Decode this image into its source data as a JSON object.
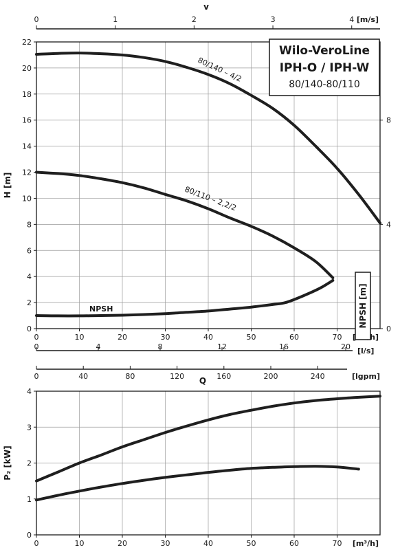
{
  "chart_data": [
    {
      "type": "line",
      "title": "Wilo-VeroLine",
      "subtitle": "IPH-O / IPH-W",
      "model_range": "80/140-80/110",
      "xlabel": "Q",
      "ylabel": "H [m]",
      "xlim": [
        0,
        80
      ],
      "ylim": [
        0,
        22
      ],
      "x_unit": "[m³/h]",
      "yticks": [
        0,
        2,
        4,
        6,
        8,
        10,
        12,
        14,
        16,
        18,
        20,
        22
      ],
      "xticks": [
        0,
        10,
        20,
        30,
        40,
        50,
        60,
        70
      ],
      "grid": true,
      "top_axis": {
        "label": "v",
        "unit": "[m/s]",
        "ticks": [
          0,
          1,
          2,
          3,
          4
        ],
        "q_per_unit": 18.35
      },
      "secondary_x_axes": [
        {
          "unit": "[l/s]",
          "ticks": [
            0,
            4,
            8,
            12,
            16,
            20
          ],
          "q_per_unit": 3.6
        },
        {
          "unit": "[lgpm]",
          "ticks": [
            0,
            40,
            80,
            120,
            160,
            200,
            240
          ],
          "q_per_unit": 0.2728
        }
      ],
      "right_axis": {
        "label": "NPSH [m]",
        "ticks": [
          0,
          4,
          8
        ],
        "range": [
          0,
          11
        ]
      },
      "series": [
        {
          "name": "80/140 – 4/2",
          "x": [
            0,
            5,
            10,
            15,
            20,
            25,
            30,
            35,
            40,
            45,
            50,
            55,
            60,
            65,
            70,
            75,
            80
          ],
          "y": [
            21.05,
            21.12,
            21.15,
            21.1,
            21.0,
            20.8,
            20.5,
            20.05,
            19.5,
            18.8,
            17.9,
            16.9,
            15.6,
            14.0,
            12.3,
            10.3,
            8.1
          ]
        },
        {
          "name": "80/110 – 2,2/2",
          "x": [
            0,
            5,
            10,
            15,
            20,
            25,
            30,
            35,
            40,
            45,
            50,
            55,
            60,
            65,
            69
          ],
          "y": [
            12.0,
            11.9,
            11.75,
            11.5,
            11.2,
            10.8,
            10.3,
            9.8,
            9.2,
            8.5,
            7.85,
            7.1,
            6.2,
            5.15,
            3.9
          ]
        },
        {
          "name": "NPSH",
          "x": [
            0,
            5,
            10,
            15,
            20,
            25,
            30,
            35,
            40,
            45,
            50,
            55,
            58,
            62,
            66,
            69
          ],
          "y": [
            1.0,
            0.98,
            0.98,
            1.0,
            1.03,
            1.08,
            1.15,
            1.25,
            1.35,
            1.5,
            1.65,
            1.85,
            2.0,
            2.5,
            3.1,
            3.7
          ]
        }
      ]
    },
    {
      "type": "line",
      "xlabel": "",
      "ylabel": "P₂ [kW]",
      "xlim": [
        0,
        80
      ],
      "ylim": [
        0,
        4
      ],
      "x_unit": "[m³/h]",
      "yticks": [
        0,
        1,
        2,
        3,
        4
      ],
      "xticks": [
        0,
        10,
        20,
        30,
        40,
        50,
        60,
        70
      ],
      "grid": true,
      "series": [
        {
          "x": [
            0,
            5,
            10,
            15,
            20,
            25,
            30,
            35,
            40,
            45,
            50,
            55,
            60,
            65,
            70,
            75,
            80
          ],
          "y": [
            1.5,
            1.75,
            2.0,
            2.22,
            2.45,
            2.65,
            2.85,
            3.03,
            3.2,
            3.35,
            3.47,
            3.58,
            3.67,
            3.74,
            3.79,
            3.83,
            3.86
          ]
        },
        {
          "x": [
            0,
            5,
            10,
            15,
            20,
            25,
            30,
            35,
            40,
            45,
            50,
            55,
            60,
            65,
            70,
            75
          ],
          "y": [
            0.97,
            1.1,
            1.22,
            1.33,
            1.43,
            1.52,
            1.6,
            1.67,
            1.74,
            1.8,
            1.85,
            1.88,
            1.9,
            1.91,
            1.89,
            1.83
          ]
        }
      ]
    }
  ]
}
